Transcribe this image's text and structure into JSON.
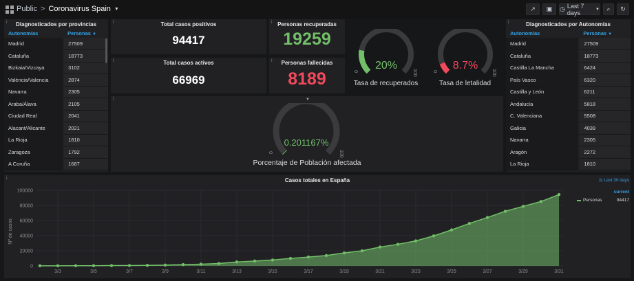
{
  "topbar": {
    "crumb_public": "Public",
    "crumb_sep": ">",
    "title": "Coronavirus Spain",
    "time_range": "Last 7 days"
  },
  "stats": {
    "total_positive": {
      "title": "Total casos positivos",
      "value": "94417"
    },
    "recovered": {
      "title": "Personas recuperadas",
      "value": "19259"
    },
    "active": {
      "title": "Total casos activos",
      "value": "66969"
    },
    "deceased": {
      "title": "Personas fallecidas",
      "value": "8189"
    }
  },
  "gauges": {
    "recovered": {
      "value": "20%",
      "fraction": 0.2,
      "label": "Tasa de recuperados",
      "min": "0",
      "max": "100",
      "color": "#73bf69"
    },
    "lethality": {
      "value": "8.7%",
      "fraction": 0.087,
      "label": "Tasa de letalidad",
      "min": "0",
      "max": "100",
      "color": "#f2495c"
    },
    "population": {
      "value": "0.201167%",
      "fraction": 0.002,
      "label": "Porcentaje de Población afectada",
      "min": "0",
      "max": "100",
      "color": "#73bf69"
    }
  },
  "left_table": {
    "title": "Diagnosticados por provincias",
    "col1": "Autonomías",
    "col2": "Personas",
    "rows": [
      [
        "Madrid",
        "27509"
      ],
      [
        "Cataluña",
        "18773"
      ],
      [
        "Bizkaia/Vizcaya",
        "3102"
      ],
      [
        "València/Valencia",
        "2874"
      ],
      [
        "Navarra",
        "2305"
      ],
      [
        "Araba/Álava",
        "2105"
      ],
      [
        "Ciudad Real",
        "2041"
      ],
      [
        "Alacant/Alicante",
        "2021"
      ],
      [
        "La Rioja",
        "1810"
      ],
      [
        "Zaragoza",
        "1792"
      ],
      [
        "A Coruña",
        "1687"
      ]
    ]
  },
  "right_table": {
    "title": "Diagnosticados por Autonomías",
    "col1": "Autonomías",
    "col2": "Personas",
    "rows": [
      [
        "Madrid",
        "27509"
      ],
      [
        "Cataluña",
        "18773"
      ],
      [
        "Castilla La Mancha",
        "6424"
      ],
      [
        "País Vasco",
        "6320"
      ],
      [
        "Castilla y León",
        "6211"
      ],
      [
        "Andalucía",
        "5818"
      ],
      [
        "C. Valenciana",
        "5508"
      ],
      [
        "Galicia",
        "4039"
      ],
      [
        "Navarra",
        "2305"
      ],
      [
        "Aragón",
        "2272"
      ],
      [
        "La Rioja",
        "1810"
      ]
    ]
  },
  "chart_panel": {
    "range_label": "Last 30 days",
    "legend_current_label": "current",
    "legend_series": "Personas",
    "legend_current_value": "94417"
  },
  "chart_data": {
    "type": "area",
    "title": "Casos totales en España",
    "xlabel": "",
    "ylabel": "Nº de casos",
    "ylim": [
      0,
      100000
    ],
    "yticks": [
      "0",
      "20000",
      "40000",
      "60000",
      "80000",
      "100000"
    ],
    "xticks": [
      "3/3",
      "3/5",
      "3/7",
      "3/9",
      "3/11",
      "3/13",
      "3/15",
      "3/17",
      "3/19",
      "3/21",
      "3/23",
      "3/25",
      "3/27",
      "3/29",
      "3/31"
    ],
    "series": [
      {
        "name": "Personas",
        "color": "#73bf69",
        "x": [
          "3/2",
          "3/3",
          "3/4",
          "3/5",
          "3/6",
          "3/7",
          "3/8",
          "3/9",
          "3/10",
          "3/11",
          "3/12",
          "3/13",
          "3/14",
          "3/15",
          "3/16",
          "3/17",
          "3/18",
          "3/19",
          "3/20",
          "3/21",
          "3/22",
          "3/23",
          "3/24",
          "3/25",
          "3/26",
          "3/27",
          "3/28",
          "3/29",
          "3/30",
          "3/31"
        ],
        "values": [
          120,
          165,
          222,
          259,
          400,
          500,
          673,
          1073,
          1695,
          2277,
          3146,
          5232,
          6391,
          7798,
          9942,
          11748,
          13716,
          17147,
          19980,
          24926,
          28572,
          33089,
          39673,
          47610,
          56188,
          64059,
          72248,
          78797,
          85195,
          94417
        ]
      }
    ]
  }
}
